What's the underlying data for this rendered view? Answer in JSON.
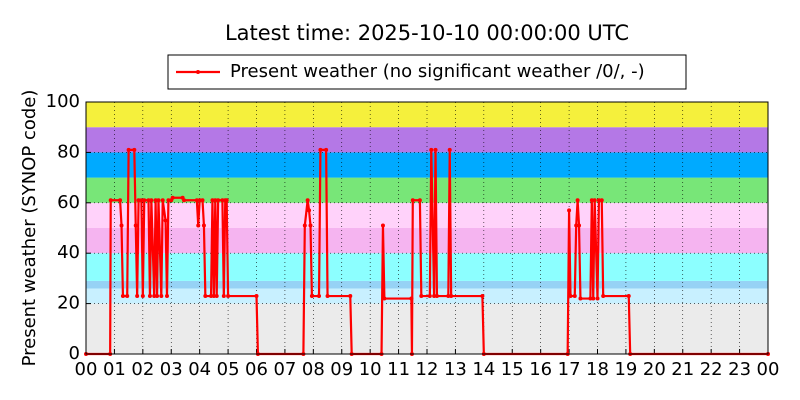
{
  "chart_data": {
    "type": "line",
    "title": "Latest time: 2025-10-10 00:00:00 UTC",
    "y_label": "Present weather (SYNOP code)",
    "xlim": [
      0,
      24
    ],
    "xticks": [
      {
        "value": 0,
        "label": "00"
      },
      {
        "value": 1,
        "label": "01"
      },
      {
        "value": 2,
        "label": "02"
      },
      {
        "value": 3,
        "label": "03"
      },
      {
        "value": 4,
        "label": "04"
      },
      {
        "value": 5,
        "label": "05"
      },
      {
        "value": 6,
        "label": "06"
      },
      {
        "value": 7,
        "label": "07"
      },
      {
        "value": 8,
        "label": "08"
      },
      {
        "value": 9,
        "label": "09"
      },
      {
        "value": 10,
        "label": "10"
      },
      {
        "value": 11,
        "label": "11"
      },
      {
        "value": 12,
        "label": "12"
      },
      {
        "value": 13,
        "label": "13"
      },
      {
        "value": 14,
        "label": "14"
      },
      {
        "value": 15,
        "label": "15"
      },
      {
        "value": 16,
        "label": "16"
      },
      {
        "value": 17,
        "label": "17"
      },
      {
        "value": 18,
        "label": "18"
      },
      {
        "value": 19,
        "label": "19"
      },
      {
        "value": 20,
        "label": "20"
      },
      {
        "value": 21,
        "label": "21"
      },
      {
        "value": 22,
        "label": "22"
      },
      {
        "value": 23,
        "label": "23"
      },
      {
        "value": 24,
        "label": "00"
      }
    ],
    "ylim": [
      0,
      100
    ],
    "yticks": [
      0,
      20,
      40,
      60,
      80,
      100
    ],
    "grid": true,
    "legend": "top-center",
    "bands": [
      {
        "from": 0,
        "to": 20,
        "color": "#ebebeb"
      },
      {
        "from": 20,
        "to": 26,
        "color": "#c8f0ff"
      },
      {
        "from": 26,
        "to": 29,
        "color": "#96d2f5"
      },
      {
        "from": 29,
        "to": 40,
        "color": "#8cffff"
      },
      {
        "from": 40,
        "to": 50,
        "color": "#f5b4f0"
      },
      {
        "from": 50,
        "to": 60,
        "color": "#ffd2fa"
      },
      {
        "from": 60,
        "to": 70,
        "color": "#78e678"
      },
      {
        "from": 70,
        "to": 80,
        "color": "#00aaff"
      },
      {
        "from": 80,
        "to": 90,
        "color": "#b478e6"
      },
      {
        "from": 90,
        "to": 100,
        "color": "#f5f03c"
      }
    ],
    "x": [
      0,
      0.85,
      0.87,
      1.2,
      1.25,
      1.3,
      1.45,
      1.5,
      1.7,
      1.75,
      1.8,
      1.85,
      1.95,
      2.0,
      2.05,
      2.2,
      2.25,
      2.3,
      2.4,
      2.45,
      2.5,
      2.55,
      2.65,
      2.7,
      2.8,
      2.85,
      2.9,
      3.0,
      3.05,
      3.4,
      3.45,
      3.9,
      3.95,
      4.0,
      4.1,
      4.15,
      4.2,
      4.4,
      4.45,
      4.5,
      4.55,
      4.6,
      4.65,
      4.8,
      4.85,
      4.9,
      4.95,
      5.0,
      6.0,
      6.05,
      7.65,
      7.7,
      7.8,
      7.85,
      7.9,
      7.95,
      8.2,
      8.25,
      8.45,
      8.5,
      9.3,
      9.35,
      10.4,
      10.45,
      10.5,
      11.45,
      11.47,
      11.5,
      11.75,
      11.8,
      12.1,
      12.15,
      12.25,
      12.3,
      12.35,
      12.75,
      12.8,
      12.85,
      13.95,
      14.0,
      16.95,
      17.0,
      17.05,
      17.2,
      17.25,
      17.3,
      17.35,
      17.4,
      17.75,
      17.8,
      17.85,
      17.9,
      18.0,
      18.05,
      18.15,
      18.2,
      19.1,
      19.15,
      24
    ],
    "series": [
      {
        "name": "Present weather (no significant weather /0/, -)",
        "color": "#ff0000",
        "values": [
          0,
          0,
          61,
          61,
          51,
          23,
          23,
          81,
          81,
          51,
          23,
          61,
          61,
          23,
          61,
          61,
          23,
          61,
          23,
          61,
          23,
          61,
          23,
          61,
          53,
          23,
          61,
          61,
          62,
          62,
          61,
          61,
          51,
          61,
          61,
          51,
          23,
          23,
          61,
          23,
          61,
          23,
          61,
          61,
          23,
          61,
          61,
          23,
          23,
          0,
          0,
          51,
          61,
          57,
          51,
          23,
          23,
          81,
          81,
          23,
          23,
          0,
          0,
          51,
          22,
          22,
          0,
          61,
          61,
          23,
          23,
          81,
          23,
          81,
          23,
          23,
          81,
          23,
          23,
          0,
          0,
          57,
          23,
          23,
          51,
          61,
          51,
          22,
          22,
          61,
          22,
          61,
          22,
          61,
          61,
          23,
          23,
          0,
          0
        ]
      }
    ]
  }
}
